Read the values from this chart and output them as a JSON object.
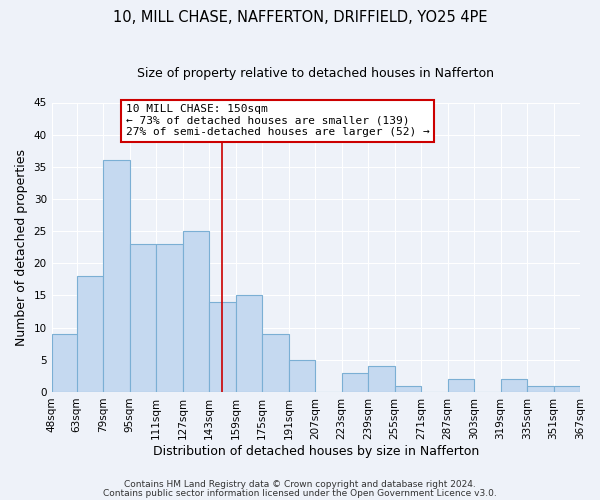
{
  "title": "10, MILL CHASE, NAFFERTON, DRIFFIELD, YO25 4PE",
  "subtitle": "Size of property relative to detached houses in Nafferton",
  "xlabel": "Distribution of detached houses by size in Nafferton",
  "ylabel": "Number of detached properties",
  "bar_left_edges": [
    48,
    63,
    79,
    95,
    111,
    127,
    143,
    159,
    175,
    191,
    207,
    223,
    239,
    255,
    271,
    287,
    303,
    319,
    335,
    351
  ],
  "bar_heights": [
    9,
    18,
    36,
    23,
    23,
    25,
    14,
    15,
    9,
    5,
    0,
    3,
    4,
    1,
    0,
    2,
    0,
    2,
    1,
    1
  ],
  "bin_width": 16,
  "bar_color": "#c5d9f0",
  "bar_edge_color": "#7bafd4",
  "tick_labels": [
    "48sqm",
    "63sqm",
    "79sqm",
    "95sqm",
    "111sqm",
    "127sqm",
    "143sqm",
    "159sqm",
    "175sqm",
    "191sqm",
    "207sqm",
    "223sqm",
    "239sqm",
    "255sqm",
    "271sqm",
    "287sqm",
    "303sqm",
    "319sqm",
    "335sqm",
    "351sqm",
    "367sqm"
  ],
  "vline_x": 151,
  "vline_color": "#cc0000",
  "ylim": [
    0,
    45
  ],
  "yticks": [
    0,
    5,
    10,
    15,
    20,
    25,
    30,
    35,
    40,
    45
  ],
  "annotation_title": "10 MILL CHASE: 150sqm",
  "annotation_line1": "← 73% of detached houses are smaller (139)",
  "annotation_line2": "27% of semi-detached houses are larger (52) →",
  "footer1": "Contains HM Land Registry data © Crown copyright and database right 2024.",
  "footer2": "Contains public sector information licensed under the Open Government Licence v3.0.",
  "background_color": "#eef2f9",
  "grid_color": "#ffffff",
  "title_fontsize": 10.5,
  "subtitle_fontsize": 9,
  "axis_label_fontsize": 9,
  "tick_fontsize": 7.5,
  "annotation_fontsize": 8,
  "footer_fontsize": 6.5
}
